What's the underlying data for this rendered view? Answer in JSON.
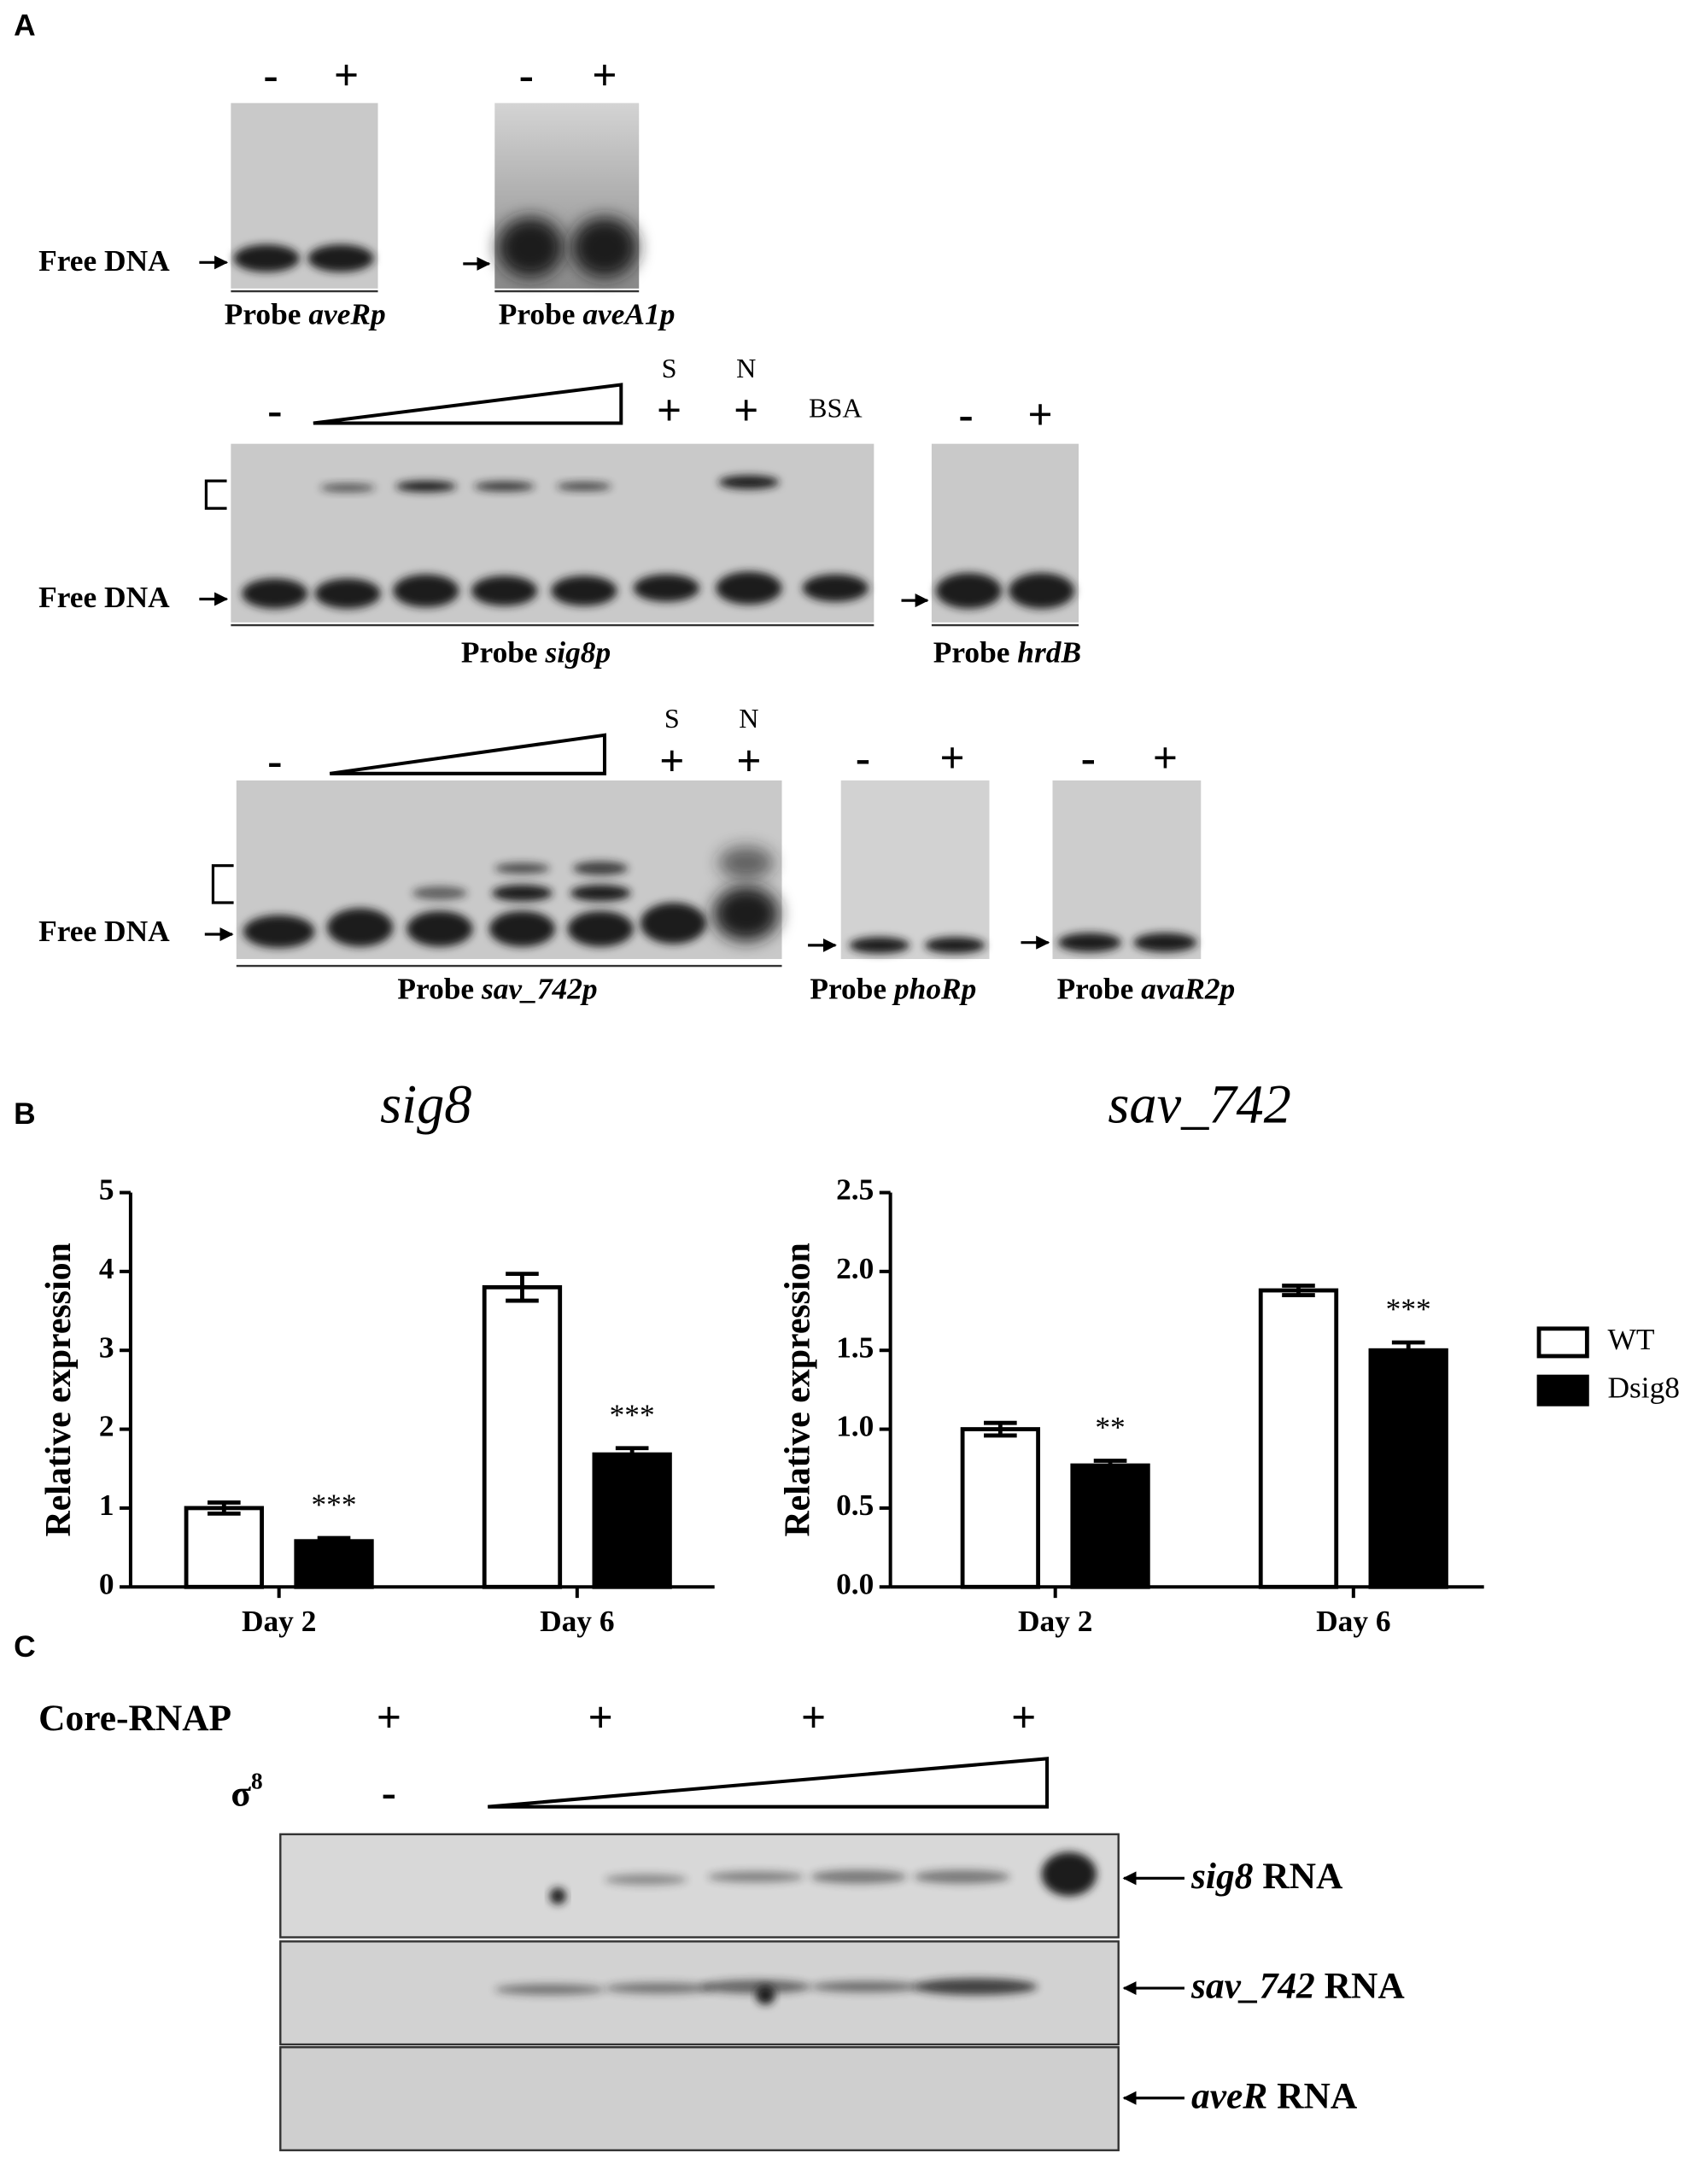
{
  "panel_a": {
    "label": "A",
    "free_dna": "Free DNA",
    "gel_aver": {
      "lanes": [
        "-",
        "+"
      ],
      "probe": {
        "prefix": "Probe",
        "name": "aveRp"
      }
    },
    "gel_avea1": {
      "lanes": [
        "-",
        "+"
      ],
      "probe": {
        "prefix": "Probe",
        "name": "aveA1p"
      }
    },
    "gel_sig8": {
      "lanes": [
        "-",
        "+",
        "+",
        "BSA"
      ],
      "competitors": [
        "S",
        "N"
      ],
      "probe": {
        "prefix": "Probe",
        "name": "sig8p"
      }
    },
    "gel_hrdb": {
      "lanes": [
        "-",
        "+"
      ],
      "probe": {
        "prefix": "Probe",
        "name": "hrdB"
      }
    },
    "gel_sav742": {
      "lanes": [
        "-",
        "+",
        "+"
      ],
      "competitors": [
        "S",
        "N"
      ],
      "probe": {
        "prefix": "Probe",
        "name": "sav_742p"
      }
    },
    "gel_phor": {
      "lanes": [
        "-",
        "+"
      ],
      "probe": {
        "prefix": "Probe",
        "name": "phoRp"
      }
    },
    "gel_avar2": {
      "lanes": [
        "-",
        "+"
      ],
      "probe": {
        "prefix": "Probe",
        "name": "avaR2p"
      }
    }
  },
  "panel_b": {
    "label": "B"
  },
  "chart_data": [
    {
      "type": "bar",
      "title": "sig8",
      "y_label": "Relative expression",
      "categories": [
        "Day 2",
        "Day 6"
      ],
      "series": [
        {
          "color": "#ffffff",
          "values": [
            1.0,
            3.8
          ],
          "errors": [
            0.07,
            0.17
          ]
        },
        {
          "color": "#000000",
          "values": [
            0.58,
            1.68
          ],
          "errors": [
            0.04,
            0.08
          ],
          "significance": [
            "***",
            "***"
          ]
        }
      ],
      "ylim": [
        0,
        5
      ],
      "yticks": [
        0,
        1,
        2,
        3,
        4,
        5
      ]
    },
    {
      "type": "bar",
      "title": "sav_742",
      "y_label": "Relative expression",
      "categories": [
        "Day 2",
        "Day 6"
      ],
      "series": [
        {
          "name": "WT",
          "color": "#ffffff",
          "values": [
            1.0,
            1.88
          ],
          "errors": [
            0.04,
            0.03
          ]
        },
        {
          "name": "Dsig8",
          "color": "#000000",
          "values": [
            0.77,
            1.5
          ],
          "errors": [
            0.03,
            0.05
          ],
          "significance": [
            "**",
            "***"
          ]
        }
      ],
      "ylim": [
        0,
        2.5
      ],
      "yticks": [
        {
          "value": 0,
          "label": "0.0"
        },
        0.5,
        {
          "value": 1,
          "label": "1.0"
        },
        1.5,
        {
          "value": 2,
          "label": "2.0"
        },
        2.5
      ],
      "legend": "right"
    }
  ],
  "panel_c": {
    "label": "C",
    "core_rnap": {
      "label": "Core-RNAP",
      "lanes": [
        "+",
        "+",
        "+",
        "+"
      ]
    },
    "sigma": {
      "symbol": "σ",
      "superscript": "8",
      "lanes": [
        "-"
      ]
    },
    "blots": [
      {
        "name": "sig8",
        "suffix": "RNA"
      },
      {
        "name": "sav_742",
        "suffix": "RNA"
      },
      {
        "name": "aveR",
        "suffix": "RNA"
      }
    ]
  }
}
